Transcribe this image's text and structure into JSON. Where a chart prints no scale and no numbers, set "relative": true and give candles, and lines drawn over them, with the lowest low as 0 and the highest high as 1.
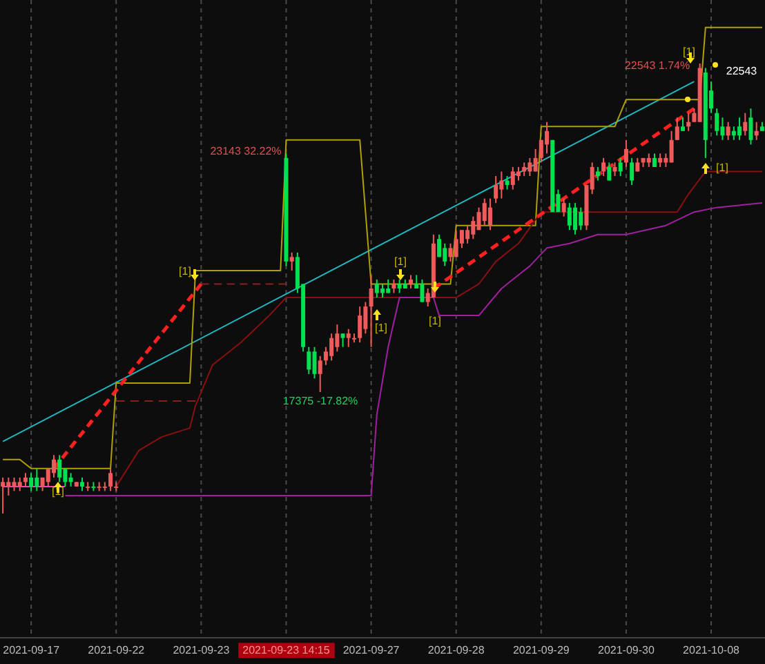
{
  "chart_data": {
    "type": "candlestick",
    "relative": true,
    "grid": "x",
    "categories": [
      null,
      null,
      null,
      null,
      null,
      "2021-09-17",
      null,
      null,
      null,
      null,
      null,
      null,
      null,
      null,
      null,
      null,
      null,
      null,
      null,
      null,
      "2021-09-22",
      null,
      null,
      null,
      null,
      null,
      null,
      null,
      null,
      null,
      null,
      null,
      null,
      null,
      null,
      "2021-09-23",
      null,
      null,
      null,
      null,
      null,
      null,
      null,
      null,
      null,
      null,
      null,
      null,
      null,
      null,
      "2021-09-23 14:15",
      null,
      null,
      null,
      null,
      null,
      null,
      null,
      null,
      null,
      null,
      null,
      null,
      null,
      null,
      "2021-09-27",
      null,
      null,
      null,
      null,
      null,
      null,
      null,
      null,
      null,
      null,
      null,
      null,
      null,
      null,
      "2021-09-28",
      null,
      null,
      null,
      null,
      null,
      null,
      null,
      null,
      null,
      null,
      null,
      null,
      null,
      null,
      "2021-09-29",
      null,
      null,
      null,
      null,
      null,
      null,
      null,
      null,
      null,
      null,
      null,
      null,
      null,
      null,
      "2021-09-30",
      null,
      null,
      null,
      null,
      null,
      null,
      null,
      null,
      null,
      null,
      null,
      null,
      null,
      null,
      "2021-10-08",
      null,
      null,
      null,
      null,
      null,
      null,
      null,
      null,
      null
    ],
    "ohlc": [
      [
        0.06,
        0.08,
        0,
        0.07
      ],
      [
        0.06,
        0.08,
        0.04,
        0.07
      ],
      [
        0.06,
        0.08,
        0.05,
        0.07
      ],
      [
        0.06,
        0.08,
        0.05,
        0.07
      ],
      [
        0.07,
        0.09,
        0.06,
        0.08
      ],
      [
        0.08,
        0.09,
        0.05,
        0.06
      ],
      [
        0.08,
        0.1,
        0.05,
        0.06
      ],
      [
        0.06,
        0.08,
        0.05,
        0.08
      ],
      [
        0.07,
        0.1,
        0.06,
        0.1
      ],
      [
        0.09,
        0.13,
        0.08,
        0.12
      ],
      [
        0.12,
        0.13,
        0.07,
        0.08
      ],
      [
        0.1,
        0.1,
        0.06,
        0.07
      ],
      [
        0.08,
        0.09,
        0.06,
        0.07
      ],
      [
        0.06,
        0.07,
        0.06,
        0.07
      ],
      [
        0.07,
        0.08,
        0.05,
        0.06
      ],
      [
        0.06,
        0.07,
        0.05,
        0.06
      ],
      [
        0.06,
        0.07,
        0.05,
        0.06
      ],
      [
        0.06,
        0.07,
        0.05,
        0.06
      ],
      [
        0.06,
        0.07,
        0.05,
        0.06
      ],
      [
        0.06,
        0.1,
        0.05,
        0.09
      ],
      [
        0.06,
        0.07,
        0.05,
        0.06
      ],
      null,
      null,
      null,
      null,
      null,
      null,
      null,
      null,
      null,
      null,
      null,
      null,
      null,
      null,
      null,
      null,
      null,
      null,
      null,
      null,
      null,
      null,
      null,
      null,
      null,
      null,
      null,
      null,
      null,
      [
        0.79,
        0.8,
        0.55,
        0.56
      ],
      [
        0.56,
        0.58,
        0.54,
        0.57
      ],
      [
        0.57,
        0.58,
        0.49,
        0.5
      ],
      [
        0.51,
        0.51,
        0.36,
        0.37
      ],
      [
        0.36,
        0.37,
        0.31,
        0.32
      ],
      [
        0.36,
        0.37,
        0.3,
        0.31
      ],
      [
        0.31,
        0.35,
        0.27,
        0.34
      ],
      [
        0.34,
        0.37,
        0.33,
        0.36
      ],
      [
        0.35,
        0.4,
        0.34,
        0.39
      ],
      [
        0.37,
        0.42,
        0.36,
        0.4
      ],
      [
        0.4,
        0.4,
        0.37,
        0.39
      ],
      [
        0.39,
        0.41,
        0.37,
        0.4
      ],
      [
        0.39,
        0.4,
        0.38,
        0.39
      ],
      [
        0.39,
        0.46,
        0.38,
        0.44
      ],
      [
        0.41,
        0.47,
        0.4,
        0.46
      ],
      [
        0.46,
        0.53,
        0.37,
        0.5
      ],
      [
        0.51,
        0.52,
        0.48,
        0.49
      ],
      [
        0.5,
        0.51,
        0.48,
        0.49
      ],
      [
        0.5,
        0.52,
        0.49,
        0.49
      ],
      [
        0.5,
        0.52,
        0.49,
        0.51
      ],
      [
        0.51,
        0.52,
        0.49,
        0.5
      ],
      [
        0.51,
        0.52,
        0.5,
        0.5
      ],
      [
        0.51,
        0.53,
        0.5,
        0.52
      ],
      [
        0.51,
        0.53,
        0.5,
        0.5
      ],
      [
        0.51,
        0.52,
        0.47,
        0.47
      ],
      [
        0.47,
        0.5,
        0.46,
        0.49
      ],
      [
        0.48,
        0.62,
        0.48,
        0.6
      ],
      [
        0.61,
        0.62,
        0.57,
        0.57
      ],
      [
        0.59,
        0.6,
        0.55,
        0.56
      ],
      [
        0.57,
        0.6,
        0.56,
        0.59
      ],
      [
        0.57,
        0.63,
        0.57,
        0.61
      ],
      [
        0.6,
        0.63,
        0.59,
        0.63
      ],
      [
        0.61,
        0.64,
        0.6,
        0.63
      ],
      [
        0.62,
        0.66,
        0.61,
        0.65
      ],
      [
        0.63,
        0.68,
        0.63,
        0.67
      ],
      [
        0.65,
        0.7,
        0.64,
        0.69
      ],
      [
        0.64,
        0.7,
        0.63,
        0.68
      ],
      [
        0.7,
        0.75,
        0.69,
        0.73
      ],
      [
        0.72,
        0.76,
        0.7,
        0.74
      ],
      [
        0.74,
        0.75,
        0.72,
        0.73
      ],
      [
        0.73,
        0.77,
        0.72,
        0.76
      ],
      [
        0.75,
        0.77,
        0.74,
        0.76
      ],
      [
        0.76,
        0.78,
        0.75,
        0.77
      ],
      [
        0.76,
        0.79,
        0.75,
        0.78
      ],
      [
        0.76,
        0.81,
        0.76,
        0.79
      ],
      [
        0.79,
        0.83,
        0.78,
        0.83
      ],
      [
        0.82,
        0.87,
        0.8,
        0.85
      ],
      [
        0.83,
        0.83,
        0.67,
        0.67
      ],
      [
        0.71,
        0.72,
        0.67,
        0.67
      ],
      [
        0.67,
        0.7,
        0.66,
        0.69
      ],
      [
        0.68,
        0.69,
        0.63,
        0.64
      ],
      [
        0.68,
        0.69,
        0.62,
        0.63
      ],
      [
        0.67,
        0.68,
        0.63,
        0.64
      ],
      [
        0.64,
        0.73,
        0.63,
        0.73
      ],
      [
        0.72,
        0.78,
        0.71,
        0.77
      ],
      [
        0.76,
        0.77,
        0.74,
        0.75
      ],
      [
        0.76,
        0.79,
        0.75,
        0.78
      ],
      [
        0.77,
        0.78,
        0.74,
        0.74
      ],
      [
        0.76,
        0.78,
        0.75,
        0.77
      ],
      [
        0.78,
        0.79,
        0.75,
        0.76
      ],
      [
        0.78,
        0.83,
        0.77,
        0.81
      ],
      [
        0.78,
        0.79,
        0.73,
        0.74
      ],
      [
        0.76,
        0.79,
        0.76,
        0.78
      ],
      [
        0.78,
        0.79,
        0.77,
        0.79
      ],
      [
        0.78,
        0.8,
        0.77,
        0.79
      ],
      [
        0.79,
        0.8,
        0.77,
        0.77
      ],
      [
        0.78,
        0.8,
        0.77,
        0.79
      ],
      [
        0.78,
        0.8,
        0.77,
        0.79
      ],
      [
        0.78,
        0.85,
        0.78,
        0.83
      ],
      [
        0.83,
        0.88,
        0.83,
        0.86
      ],
      [
        0.86,
        0.88,
        0.85,
        0.85
      ],
      [
        0.86,
        0.89,
        0.85,
        0.87
      ],
      [
        0.87,
        0.9,
        0.87,
        0.89
      ],
      [
        0.87,
        1,
        0.87,
        0.99
      ],
      [
        0.98,
        0.99,
        0.79,
        0.83
      ],
      [
        0.94,
        0.96,
        0.89,
        0.9
      ],
      [
        0.89,
        0.9,
        0.84,
        0.85
      ],
      [
        0.86,
        0.88,
        0.83,
        0.84
      ],
      [
        0.84,
        0.87,
        0.83,
        0.86
      ],
      [
        0.85,
        0.86,
        0.83,
        0.84
      ],
      [
        0.86,
        0.88,
        0.83,
        0.84
      ],
      [
        0.85,
        0.89,
        0.84,
        0.87
      ],
      [
        0.88,
        0.9,
        0.82,
        0.83
      ],
      [
        0.84,
        0.87,
        0.83,
        0.85
      ],
      [
        0.86,
        0.87,
        0.85,
        0.85
      ]
    ],
    "colors": [
      "#f05a5a",
      "#f05a5a",
      "#f05a5a",
      "#f05a5a",
      "#f05a5a",
      "#00e050",
      "#00e050",
      "#f05a5a",
      "#f05a5a",
      "#f05a5a",
      "#00e050",
      "#00e050",
      "#00e050",
      "#f05a5a",
      "#00e050",
      "#f05a5a",
      "#00e050",
      "#f05a5a",
      "#f05a5a",
      "#f05a5a",
      "#f05a5a",
      null,
      null,
      null,
      null,
      null,
      null,
      null,
      null,
      null,
      null,
      null,
      null,
      null,
      null,
      null,
      null,
      null,
      null,
      null,
      null,
      null,
      null,
      null,
      null,
      null,
      null,
      null,
      null,
      null,
      "#00e050",
      "#f05a5a",
      "#00e050",
      "#00e050",
      "#00e050",
      "#00e050",
      "#f05a5a",
      "#f05a5a",
      "#f05a5a",
      "#f05a5a",
      "#00e050",
      "#f05a5a",
      "#f05a5a",
      "#f05a5a",
      "#f05a5a",
      "#f05a5a",
      "#00e050",
      "#00e050",
      "#00e050",
      "#f05a5a",
      "#00e050",
      "#00e050",
      "#f05a5a",
      "#00e050",
      "#00e050",
      "#f05a5a",
      "#f05a5a",
      "#00e050",
      "#00e050",
      "#f05a5a",
      "#f05a5a",
      "#f05a5a",
      "#f05a5a",
      "#f05a5a",
      "#f05a5a",
      "#f05a5a",
      "#f05a5a",
      "#f05a5a",
      "#f05a5a",
      "#00e050",
      "#f05a5a",
      "#f05a5a",
      "#f05a5a",
      "#f05a5a",
      "#f05a5a",
      "#f05a5a",
      "#f05a5a",
      "#00e050",
      "#00e050",
      "#f05a5a",
      "#00e050",
      "#00e050",
      "#00e050",
      "#f05a5a",
      "#f05a5a",
      "#00e050",
      "#f05a5a",
      "#00e050",
      "#f05a5a",
      "#00e050",
      "#f05a5a",
      "#00e050",
      "#f05a5a",
      "#f05a5a",
      "#f05a5a",
      "#00e050",
      "#f05a5a",
      "#f05a5a",
      "#f05a5a",
      "#f05a5a",
      "#00e050",
      "#f05a5a",
      "#f05a5a",
      "#f05a5a",
      "#00e050",
      "#00e050",
      "#00e050",
      "#00e050",
      "#f05a5a",
      "#00e050",
      "#00e050",
      "#f05a5a",
      "#00e050",
      "#f05a5a",
      "#00e050"
    ],
    "series": [
      {
        "type": "line",
        "color": "#20b8c0",
        "values": [
          0.16,
          null,
          null,
          null,
          null,
          null,
          null,
          null,
          null,
          null,
          null,
          null,
          null,
          null,
          null,
          null,
          null,
          null,
          null,
          null,
          null,
          null,
          null,
          null,
          null,
          null,
          null,
          null,
          null,
          null,
          null,
          null,
          null,
          null,
          null,
          null,
          null,
          null,
          null,
          null,
          null,
          null,
          null,
          null,
          null,
          null,
          null,
          null,
          null,
          null,
          null,
          null,
          null,
          null,
          null,
          null,
          null,
          null,
          null,
          null,
          null,
          null,
          null,
          null,
          null,
          null,
          null,
          null,
          null,
          null,
          null,
          null,
          null,
          null,
          null,
          null,
          null,
          null,
          null,
          null,
          null,
          null,
          null,
          null,
          null,
          null,
          null,
          null,
          null,
          null,
          null,
          null,
          null,
          null,
          null,
          null,
          null,
          null,
          null,
          null,
          null,
          null,
          null,
          null,
          null,
          null,
          null,
          null,
          null,
          null,
          null,
          null,
          null,
          null,
          null,
          null,
          null,
          null,
          null,
          null,
          null,
          null,
          0.96,
          null,
          null,
          null,
          null,
          null,
          null,
          null,
          null,
          null,
          null,
          null,
          null
        ]
      },
      {
        "type": "line",
        "color": "#b0a000",
        "values": [
          0.12,
          null,
          null,
          0.12,
          null,
          0.1,
          null,
          null,
          null,
          null,
          null,
          null,
          null,
          null,
          null,
          null,
          null,
          null,
          null,
          0.1,
          0.29,
          null,
          null,
          null,
          null,
          null,
          null,
          null,
          null,
          null,
          null,
          null,
          null,
          0.29,
          0.54,
          null,
          null,
          null,
          null,
          null,
          null,
          null,
          null,
          null,
          null,
          null,
          null,
          null,
          null,
          0.54,
          0.83,
          null,
          null,
          null,
          null,
          null,
          null,
          null,
          null,
          null,
          null,
          null,
          null,
          0.83,
          null,
          0.51,
          null,
          null,
          null,
          null,
          null,
          null,
          null,
          null,
          null,
          null,
          null,
          null,
          null,
          0.51,
          0.64,
          null,
          null,
          null,
          null,
          null,
          null,
          null,
          null,
          null,
          null,
          null,
          null,
          null,
          0.64,
          0.86,
          null,
          null,
          null,
          null,
          null,
          null,
          null,
          null,
          null,
          null,
          null,
          null,
          0.86,
          null,
          0.92,
          null,
          null,
          null,
          null,
          null,
          null,
          null,
          null,
          null,
          null,
          null,
          null,
          0.92,
          1.08,
          null,
          null,
          null,
          null,
          null,
          null,
          null,
          null,
          null,
          1.08
        ]
      },
      {
        "type": "line",
        "color": "#8a1010",
        "values": [
          null,
          null,
          null,
          null,
          null,
          null,
          null,
          null,
          null,
          null,
          null,
          null,
          null,
          null,
          null,
          null,
          null,
          null,
          null,
          null,
          0.06,
          null,
          null,
          null,
          0.14,
          null,
          null,
          null,
          0.17,
          null,
          null,
          null,
          null,
          0.19,
          0.24,
          null,
          null,
          0.33,
          null,
          null,
          null,
          null,
          0.38,
          null,
          null,
          null,
          null,
          0.44,
          null,
          null,
          0.48,
          null,
          null,
          null,
          null,
          null,
          null,
          null,
          null,
          null,
          null,
          null,
          null,
          null,
          null,
          null,
          null,
          null,
          null,
          null,
          null,
          null,
          null,
          null,
          null,
          null,
          null,
          null,
          null,
          null,
          0.48,
          null,
          null,
          null,
          0.51,
          null,
          null,
          0.56,
          null,
          null,
          null,
          0.6,
          null,
          null,
          null,
          0.67,
          null,
          null,
          null,
          null,
          null,
          null,
          null,
          null,
          null,
          null,
          null,
          null,
          null,
          null,
          null,
          null,
          null,
          null,
          null,
          null,
          null,
          null,
          null,
          0.67,
          null,
          0.71,
          null,
          null,
          0.76,
          null,
          null,
          null,
          null,
          null,
          null,
          null,
          null,
          null,
          0.76
        ]
      },
      {
        "type": "line",
        "color": "#a020a0",
        "values": [
          null,
          null,
          null,
          null,
          null,
          null,
          null,
          null,
          null,
          null,
          null,
          0.04,
          null,
          null,
          null,
          null,
          null,
          null,
          null,
          null,
          null,
          null,
          null,
          null,
          null,
          null,
          null,
          null,
          null,
          null,
          null,
          null,
          null,
          null,
          null,
          null,
          null,
          null,
          null,
          null,
          null,
          null,
          null,
          null,
          null,
          null,
          null,
          null,
          null,
          null,
          null,
          null,
          null,
          null,
          null,
          null,
          null,
          null,
          null,
          null,
          null,
          null,
          null,
          null,
          null,
          0.04,
          0.22,
          null,
          0.37,
          null,
          0.48,
          null,
          null,
          null,
          null,
          null,
          0.48,
          0.44,
          null,
          null,
          null,
          null,
          null,
          null,
          0.44,
          null,
          null,
          null,
          0.5,
          null,
          null,
          null,
          null,
          0.55,
          null,
          null,
          0.59,
          null,
          null,
          null,
          0.6,
          null,
          null,
          null,
          null,
          0.62,
          null,
          null,
          null,
          null,
          0.62,
          null,
          null,
          null,
          null,
          null,
          null,
          0.64,
          null,
          null,
          null,
          null,
          0.67,
          null,
          null,
          null,
          0.68,
          null,
          null,
          null,
          null,
          null,
          null,
          null,
          0.69
        ]
      },
      {
        "type": "line",
        "color": "#ff40b0",
        "values": [
          0.06,
          null,
          null,
          null,
          null,
          null,
          null,
          null,
          null,
          null,
          null,
          0.06,
          null,
          null,
          null,
          null,
          null,
          null,
          null,
          null,
          null,
          null,
          null,
          null,
          null,
          null,
          null,
          null,
          null,
          null,
          null,
          null,
          null,
          null,
          null,
          null,
          null,
          null,
          null,
          null,
          null,
          null,
          null,
          null,
          null,
          null,
          null,
          null,
          null,
          null,
          null,
          null,
          null,
          null,
          null,
          null,
          null,
          null,
          null,
          null,
          null,
          null,
          null,
          null,
          null,
          null,
          null,
          null,
          null,
          null,
          null,
          null,
          null,
          null,
          null,
          null,
          null,
          null,
          null,
          null,
          null,
          null,
          null,
          null,
          null,
          null,
          null,
          null,
          null,
          null,
          null,
          null,
          null,
          null,
          null,
          null,
          null,
          null,
          null,
          null,
          null,
          null,
          null,
          null,
          null,
          null,
          null,
          null,
          null,
          null,
          null,
          null,
          null,
          null,
          null,
          null,
          null,
          null,
          null,
          null,
          null,
          null,
          null,
          null,
          null,
          null,
          null,
          null,
          null,
          null,
          null,
          null,
          null,
          null,
          null
        ]
      },
      {
        "type": "line",
        "color": "#8a2020",
        "line_style": "dashed",
        "values": [
          null,
          null,
          null,
          null,
          null,
          null,
          null,
          null,
          null,
          null,
          null,
          null,
          null,
          null,
          null,
          null,
          null,
          null,
          null,
          null,
          0.25,
          null,
          null,
          null,
          null,
          null,
          null,
          null,
          null,
          null,
          null,
          null,
          null,
          null,
          0.25,
          null,
          null,
          null,
          null,
          null,
          null,
          null,
          null,
          null,
          null,
          null,
          null,
          null,
          null,
          null,
          null,
          null,
          null,
          null,
          null,
          null,
          null,
          null,
          null,
          null,
          null,
          null,
          null,
          null,
          null,
          null,
          null,
          null,
          null,
          null,
          null,
          null,
          null,
          null,
          null,
          null,
          null,
          null,
          null,
          null,
          null,
          null,
          null,
          null,
          null,
          null,
          null,
          null,
          null,
          null,
          null,
          null,
          null,
          null,
          null,
          null,
          null,
          null,
          null,
          null,
          null,
          null,
          null,
          null,
          null,
          null,
          null,
          null,
          null,
          null,
          null,
          null,
          null,
          null,
          null,
          null,
          null,
          null,
          null,
          null,
          null,
          null,
          null,
          null,
          null,
          null,
          null,
          null,
          null,
          null,
          null,
          null,
          null,
          null,
          null
        ]
      },
      {
        "type": "line",
        "color": "#8a2020",
        "line_style": "dashed",
        "values": [
          null,
          null,
          null,
          null,
          null,
          null,
          null,
          null,
          null,
          null,
          null,
          null,
          null,
          null,
          null,
          null,
          null,
          null,
          null,
          null,
          null,
          null,
          null,
          null,
          null,
          null,
          null,
          null,
          null,
          null,
          null,
          null,
          null,
          null,
          null,
          0.51,
          null,
          null,
          null,
          null,
          null,
          null,
          null,
          null,
          null,
          null,
          null,
          null,
          null,
          null,
          0.51,
          null,
          null,
          null,
          null,
          null,
          null,
          null,
          null,
          null,
          null,
          null,
          null,
          null,
          null,
          null,
          null,
          null,
          null,
          null,
          null,
          null,
          null,
          null,
          null,
          null,
          null,
          null,
          null,
          null,
          null,
          null,
          null,
          null,
          null,
          null,
          null,
          null,
          null,
          null,
          null,
          null,
          null,
          null,
          null,
          null,
          null,
          null,
          null,
          null,
          null,
          null,
          null,
          null,
          null,
          null,
          null,
          null,
          null,
          null,
          null,
          null,
          null,
          null,
          null,
          null,
          null,
          null,
          null,
          null,
          null,
          null,
          null,
          null,
          null,
          null,
          null,
          null,
          null,
          null,
          null,
          null,
          null,
          null,
          null
        ]
      },
      {
        "type": "line",
        "color": "#ff2020",
        "line_style": "dashed",
        "values": [
          null,
          null,
          null,
          null,
          null,
          null,
          null,
          null,
          null,
          0.1,
          null,
          null,
          null,
          null,
          null,
          null,
          null,
          null,
          null,
          null,
          null,
          null,
          null,
          null,
          null,
          null,
          null,
          null,
          null,
          null,
          null,
          null,
          null,
          null,
          null,
          0.51,
          null,
          null,
          null,
          null,
          null,
          null,
          null,
          null,
          null,
          null,
          null,
          null,
          null,
          null,
          null,
          null,
          null,
          null,
          null,
          null,
          null,
          null,
          null,
          null,
          null,
          null,
          null,
          null,
          null,
          null,
          null,
          null,
          null,
          null,
          null,
          null,
          null,
          null,
          null,
          null,
          null,
          null,
          null,
          null,
          null,
          null,
          null,
          null,
          null,
          null,
          null,
          null,
          null,
          null,
          null,
          null,
          null,
          null,
          null,
          null,
          null,
          null,
          null,
          null,
          null,
          null,
          null,
          null,
          null,
          null,
          null,
          null,
          null,
          null,
          null,
          null,
          null,
          null,
          null,
          null,
          null,
          null,
          null,
          null,
          null,
          null,
          null,
          null,
          null,
          null,
          null,
          null,
          null,
          null,
          null,
          null,
          null,
          null,
          null
        ]
      },
      {
        "type": "line",
        "color": "#ff2020",
        "line_style": "dashed",
        "values": [
          null,
          null,
          null,
          null,
          null,
          null,
          null,
          null,
          null,
          null,
          null,
          null,
          null,
          null,
          null,
          null,
          null,
          null,
          null,
          null,
          null,
          null,
          null,
          null,
          null,
          null,
          null,
          null,
          null,
          null,
          null,
          null,
          null,
          null,
          null,
          null,
          null,
          null,
          null,
          null,
          null,
          null,
          null,
          null,
          null,
          null,
          null,
          null,
          null,
          null,
          null,
          null,
          null,
          null,
          null,
          null,
          null,
          null,
          null,
          null,
          null,
          null,
          null,
          null,
          null,
          null,
          null,
          null,
          null,
          null,
          null,
          null,
          null,
          null,
          null,
          null,
          0.5,
          null,
          null,
          null,
          null,
          null,
          null,
          null,
          null,
          null,
          null,
          null,
          null,
          null,
          null,
          null,
          null,
          null,
          null,
          null,
          null,
          null,
          null,
          null,
          null,
          null,
          null,
          null,
          null,
          null,
          null,
          null,
          null,
          null,
          null,
          null,
          null,
          null,
          null,
          null,
          null,
          null,
          null,
          null,
          null,
          null,
          0.9,
          null,
          null,
          null,
          null,
          null,
          null,
          null,
          null,
          null,
          null,
          null,
          null
        ]
      }
    ],
    "annotations": [
      "23143 32.22%",
      "17375 -17.82%",
      "22543 1.74%",
      "22543",
      {
        "text": "[1]",
        "y": 0.05
      },
      "[1]",
      "[1]",
      "[1]",
      {
        "text": "[1]",
        "y": 0.43
      },
      "[1]",
      "[1]"
    ]
  }
}
